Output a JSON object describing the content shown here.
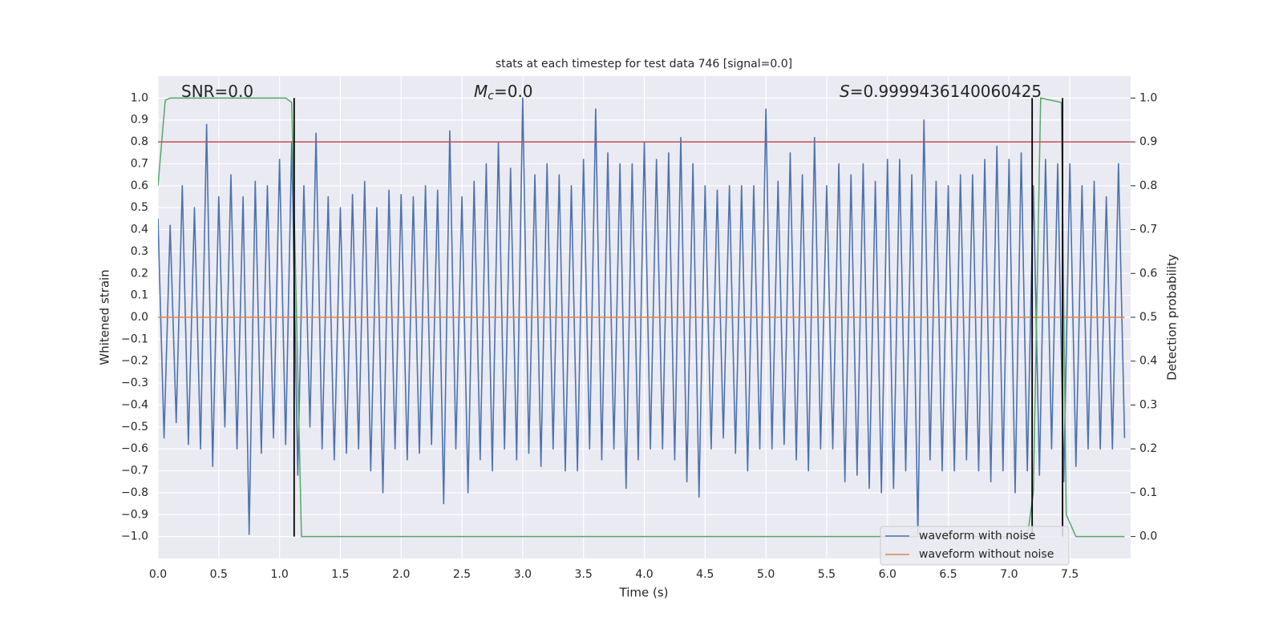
{
  "chart_data": {
    "type": "line",
    "title": "stats at each timestep for test data 746 [signal=0.0]",
    "xlabel": "Time (s)",
    "ylabel": "Whitened strain",
    "y2label": "Detection probability",
    "xlim": [
      0,
      8.0
    ],
    "ylim": [
      -1.1,
      1.1
    ],
    "y2lim": [
      -0.05,
      1.05
    ],
    "grid": true,
    "legend": "lower right",
    "xticks": [
      {
        "value": 0,
        "label": "0.0"
      },
      {
        "value": 0.5,
        "label": "0.5"
      },
      {
        "value": 1,
        "label": "1.0"
      },
      {
        "value": 1.5,
        "label": "1.5"
      },
      {
        "value": 2,
        "label": "2.0"
      },
      {
        "value": 2.5,
        "label": "2.5"
      },
      {
        "value": 3,
        "label": "3.0"
      },
      {
        "value": 3.5,
        "label": "3.5"
      },
      {
        "value": 4,
        "label": "4.0"
      },
      {
        "value": 4.5,
        "label": "4.5"
      },
      {
        "value": 5,
        "label": "5.0"
      },
      {
        "value": 5.5,
        "label": "5.5"
      },
      {
        "value": 6,
        "label": "6.0"
      },
      {
        "value": 6.5,
        "label": "6.5"
      },
      {
        "value": 7,
        "label": "7.0"
      },
      {
        "value": 7.5,
        "label": "7.5"
      }
    ],
    "yticks": [
      {
        "value": -1,
        "label": "−1.0"
      },
      {
        "value": -0.9,
        "label": "−0.9"
      },
      {
        "value": -0.8,
        "label": "−0.8"
      },
      {
        "value": -0.7,
        "label": "−0.7"
      },
      {
        "value": -0.6,
        "label": "−0.6"
      },
      {
        "value": -0.5,
        "label": "−0.5"
      },
      {
        "value": -0.4,
        "label": "−0.4"
      },
      {
        "value": -0.3,
        "label": "−0.3"
      },
      {
        "value": -0.2,
        "label": "−0.2"
      },
      {
        "value": -0.1,
        "label": "−0.1"
      },
      {
        "value": 0,
        "label": "0.0"
      },
      {
        "value": 0.1,
        "label": "0.1"
      },
      {
        "value": 0.2,
        "label": "0.2"
      },
      {
        "value": 0.3,
        "label": "0.3"
      },
      {
        "value": 0.4,
        "label": "0.4"
      },
      {
        "value": 0.5,
        "label": "0.5"
      },
      {
        "value": 0.6,
        "label": "0.6"
      },
      {
        "value": 0.7,
        "label": "0.7"
      },
      {
        "value": 0.8,
        "label": "0.8"
      },
      {
        "value": 0.9,
        "label": "0.9"
      },
      {
        "value": 1,
        "label": "1.0"
      }
    ],
    "y2ticks": [
      {
        "value": 0,
        "label": "0.0"
      },
      {
        "value": 0.1,
        "label": "0.1"
      },
      {
        "value": 0.2,
        "label": "0.2"
      },
      {
        "value": 0.3,
        "label": "0.3"
      },
      {
        "value": 0.4,
        "label": "0.4"
      },
      {
        "value": 0.5,
        "label": "0.5"
      },
      {
        "value": 0.6,
        "label": "0.6"
      },
      {
        "value": 0.7,
        "label": "0.7"
      },
      {
        "value": 0.8,
        "label": "0.8"
      },
      {
        "value": 0.9,
        "label": "0.9"
      },
      {
        "value": 1,
        "label": "1.0"
      }
    ],
    "annotations": [
      [
        "SNR=0.0"
      ],
      [
        "M",
        "c",
        "=0.0"
      ],
      [
        "S",
        "=0.9999436140060425"
      ]
    ],
    "series": [
      {
        "name": "waveform with noise",
        "color": "#4c72b0",
        "x": [
          0,
          0.05,
          0.1,
          0.15,
          0.2,
          0.25,
          0.3,
          0.35,
          0.4,
          0.45,
          0.5,
          0.55,
          0.6,
          0.65,
          0.7,
          0.75,
          0.8,
          0.85,
          0.9,
          0.95,
          1,
          1.05,
          1.1,
          1.15,
          1.2,
          1.25,
          1.3,
          1.35,
          1.4,
          1.45,
          1.5,
          1.55,
          1.6,
          1.65,
          1.7,
          1.75,
          1.8,
          1.85,
          1.9,
          1.95,
          2,
          2.05,
          2.1,
          2.15,
          2.2,
          2.25,
          2.3,
          2.35,
          2.4,
          2.45,
          2.5,
          2.55,
          2.6,
          2.65,
          2.7,
          2.75,
          2.8,
          2.85,
          2.9,
          2.95,
          3,
          3.05,
          3.1,
          3.15,
          3.2,
          3.25,
          3.3,
          3.35,
          3.4,
          3.45,
          3.5,
          3.55,
          3.6,
          3.65,
          3.7,
          3.75,
          3.8,
          3.85,
          3.9,
          3.95,
          4,
          4.05,
          4.1,
          4.15,
          4.2,
          4.25,
          4.3,
          4.35,
          4.4,
          4.45,
          4.5,
          4.55,
          4.6,
          4.65,
          4.7,
          4.75,
          4.8,
          4.85,
          4.9,
          4.95,
          5,
          5.05,
          5.1,
          5.15,
          5.2,
          5.25,
          5.3,
          5.35,
          5.4,
          5.45,
          5.5,
          5.55,
          5.6,
          5.65,
          5.7,
          5.75,
          5.8,
          5.85,
          5.9,
          5.95,
          6,
          6.05,
          6.1,
          6.15,
          6.2,
          6.25,
          6.3,
          6.35,
          6.4,
          6.45,
          6.5,
          6.55,
          6.6,
          6.65,
          6.7,
          6.75,
          6.8,
          6.85,
          6.9,
          6.95,
          7,
          7.05,
          7.1,
          7.15,
          7.2,
          7.25,
          7.3,
          7.35,
          7.4,
          7.45,
          7.5,
          7.55,
          7.6,
          7.65,
          7.7,
          7.75,
          7.8,
          7.85,
          7.9,
          7.95
        ],
        "values": [
          0.45,
          -0.55,
          0.42,
          -0.48,
          0.6,
          -0.58,
          0.5,
          -0.6,
          0.88,
          -0.68,
          0.55,
          -0.5,
          0.65,
          -0.6,
          0.55,
          -0.99,
          0.62,
          -0.62,
          0.6,
          -0.55,
          0.72,
          -0.58,
          0.8,
          -0.72,
          0.6,
          -0.5,
          0.84,
          -0.6,
          0.55,
          -0.65,
          0.5,
          -0.62,
          0.56,
          -0.6,
          0.62,
          -0.7,
          0.5,
          -0.8,
          0.58,
          -0.6,
          0.56,
          -0.65,
          0.55,
          -0.62,
          0.6,
          -0.58,
          0.58,
          -0.85,
          0.85,
          -0.6,
          0.55,
          -0.8,
          0.62,
          -0.65,
          0.7,
          -0.7,
          0.8,
          -0.6,
          0.68,
          -0.65,
          1.0,
          -0.62,
          0.65,
          -0.68,
          0.7,
          -0.6,
          0.65,
          -0.7,
          0.6,
          -0.7,
          0.72,
          -0.6,
          0.95,
          -0.65,
          0.75,
          -0.6,
          0.7,
          -0.78,
          0.7,
          -0.65,
          0.8,
          -0.6,
          0.72,
          -0.6,
          0.75,
          -0.65,
          0.82,
          -0.75,
          0.7,
          -0.82,
          0.6,
          -0.6,
          0.58,
          -0.55,
          0.6,
          -0.62,
          0.6,
          -0.7,
          0.6,
          -0.6,
          0.95,
          -0.6,
          0.62,
          -0.58,
          0.75,
          -0.65,
          0.65,
          -0.7,
          0.82,
          -0.6,
          0.6,
          -0.6,
          0.7,
          -0.75,
          0.65,
          -0.72,
          0.7,
          -0.78,
          0.62,
          -0.8,
          0.72,
          -0.78,
          0.72,
          -0.7,
          0.65,
          -0.99,
          0.9,
          -0.65,
          0.62,
          -0.7,
          0.6,
          -0.7,
          0.65,
          -0.65,
          0.65,
          -0.7,
          0.72,
          -0.75,
          0.78,
          -0.7,
          0.72,
          -0.8,
          0.75,
          -0.7,
          0.6,
          -0.72,
          0.72,
          -0.6,
          0.7,
          -0.75,
          0.7,
          -0.68,
          0.6,
          -0.6,
          0.62,
          -0.6,
          0.55,
          -0.6,
          0.7,
          -0.55
        ]
      },
      {
        "name": "waveform without noise",
        "color": "#dd8452",
        "x": [
          0,
          7.95
        ],
        "values": [
          0.0,
          0.0
        ]
      }
    ],
    "probability": {
      "color": "#55a868",
      "axis": "y2",
      "x": [
        0,
        0.06,
        0.1,
        1.05,
        1.1,
        1.14,
        1.18,
        7.15,
        7.2,
        7.26,
        7.43,
        7.47,
        7.55,
        7.95
      ],
      "values": [
        0.8,
        0.995,
        1.0,
        1.0,
        0.99,
        0.5,
        0.0,
        0.0,
        0.1,
        1.0,
        0.99,
        0.05,
        0.0,
        0.0
      ]
    },
    "threshold": {
      "value": 0.8,
      "color": "#c44e52"
    },
    "vlines": {
      "x": [
        1.12,
        7.19,
        7.44
      ],
      "ymin": -1.0,
      "ymax": 1.0,
      "color": "#000000"
    }
  }
}
